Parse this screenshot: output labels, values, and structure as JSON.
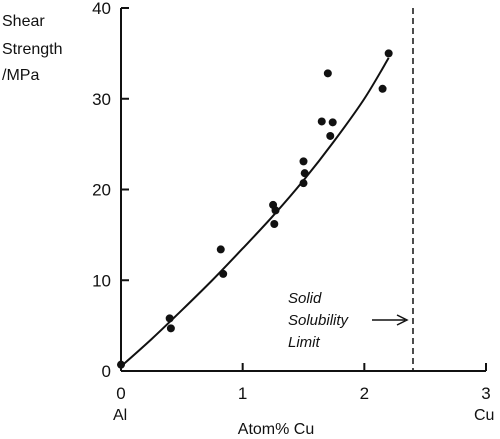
{
  "chart_data": {
    "type": "scatter",
    "title": "",
    "ylabel": [
      "Shear",
      "Strength",
      "/MPa"
    ],
    "xlabel": "Atom% Cu",
    "xlim": [
      0,
      3
    ],
    "ylim": [
      0,
      40
    ],
    "x_ticks": [
      0,
      1,
      2,
      3
    ],
    "y_ticks": [
      0,
      10,
      20,
      30,
      40
    ],
    "x_tick_labels": [
      "0",
      "1",
      "2",
      "3"
    ],
    "y_tick_labels": [
      "0",
      "10",
      "20",
      "30",
      "40"
    ],
    "x_end_labels": {
      "left": "Al",
      "right": "Cu"
    },
    "points": [
      {
        "x": 0.0,
        "y": 0.7
      },
      {
        "x": 0.4,
        "y": 5.8
      },
      {
        "x": 0.41,
        "y": 4.7
      },
      {
        "x": 0.82,
        "y": 13.4
      },
      {
        "x": 0.84,
        "y": 10.7
      },
      {
        "x": 1.25,
        "y": 18.3
      },
      {
        "x": 1.27,
        "y": 17.7
      },
      {
        "x": 1.26,
        "y": 16.2
      },
      {
        "x": 1.5,
        "y": 23.1
      },
      {
        "x": 1.51,
        "y": 21.8
      },
      {
        "x": 1.5,
        "y": 20.7
      },
      {
        "x": 1.65,
        "y": 27.5
      },
      {
        "x": 1.7,
        "y": 32.8
      },
      {
        "x": 1.74,
        "y": 27.4
      },
      {
        "x": 1.72,
        "y": 25.9
      },
      {
        "x": 2.15,
        "y": 31.1
      },
      {
        "x": 2.2,
        "y": 35.0
      }
    ],
    "fit_curve": [
      {
        "x": 0.0,
        "y": 0.5
      },
      {
        "x": 0.25,
        "y": 3.5
      },
      {
        "x": 0.5,
        "y": 6.7
      },
      {
        "x": 0.75,
        "y": 10.0
      },
      {
        "x": 1.0,
        "y": 13.5
      },
      {
        "x": 1.25,
        "y": 17.1
      },
      {
        "x": 1.5,
        "y": 21.0
      },
      {
        "x": 1.75,
        "y": 25.3
      },
      {
        "x": 2.0,
        "y": 30.0
      },
      {
        "x": 2.2,
        "y": 34.5
      }
    ],
    "limit_line": {
      "x": 2.4,
      "style": "dashed"
    },
    "annotation": {
      "lines": [
        "Solid",
        "Solubility",
        "Limit"
      ],
      "arrow_to_x": 2.4
    },
    "grid": false
  }
}
